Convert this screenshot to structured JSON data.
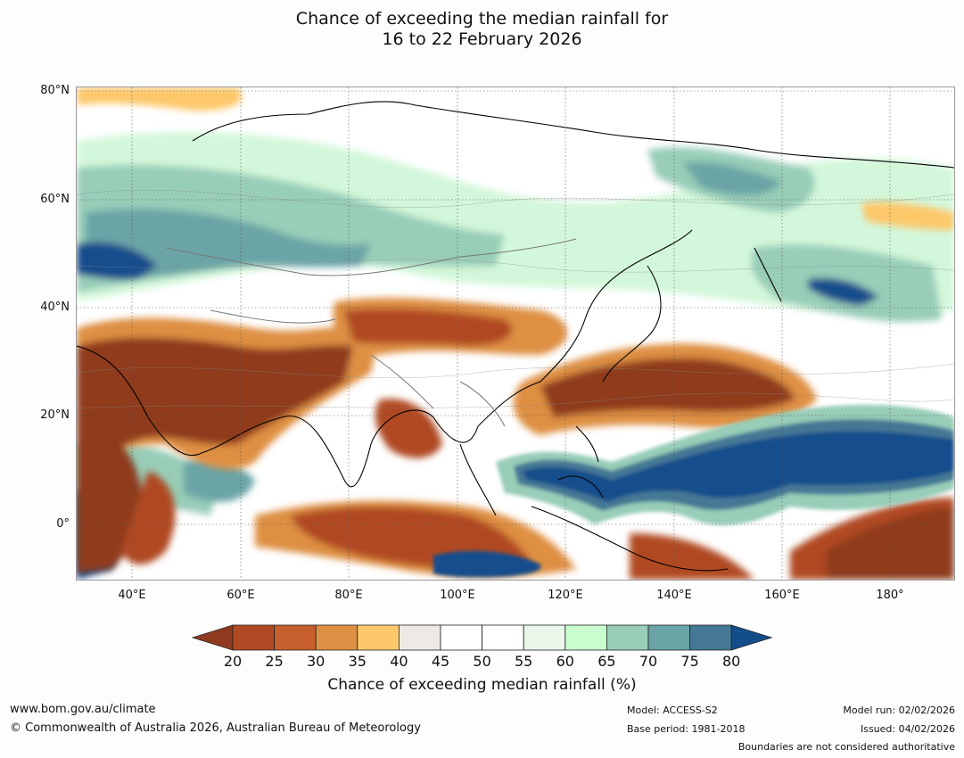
{
  "title": {
    "line1": "Chance of exceeding the median rainfall for",
    "line2": "16 to 22 February 2026"
  },
  "map": {
    "lat_labels": [
      "80°N",
      "60°N",
      "40°N",
      "20°N",
      "0°"
    ],
    "lon_labels": [
      "40°E",
      "60°E",
      "80°E",
      "100°E",
      "120°E",
      "140°E",
      "160°E",
      "180°"
    ]
  },
  "colorbar": {
    "title": "Chance of exceeding median rainfall (%)",
    "ticks": [
      "20",
      "25",
      "30",
      "35",
      "40",
      "45",
      "50",
      "55",
      "60",
      "65",
      "70",
      "75",
      "80"
    ],
    "colors": [
      "#8f3a1f",
      "#b04a24",
      "#c75f2c",
      "#de8f43",
      "#fdc86a",
      "#edeae5",
      "#ffffff",
      "#ffffff",
      "#eaf6ea",
      "#c8fdd0",
      "#98cdb8",
      "#6aa4a6",
      "#447894",
      "#134d8c"
    ]
  },
  "footer": {
    "url": "www.bom.gov.au/climate",
    "copyright": "© Commonwealth of Australia 2026, Australian Bureau of Meteorology",
    "model": "Model: ACCESS-S2",
    "base_period": "Base period: 1981-2018",
    "model_run": "Model run: 02/02/2026",
    "issued": "Issued: 04/02/2026",
    "boundaries": "Boundaries are not considered authoritative"
  }
}
